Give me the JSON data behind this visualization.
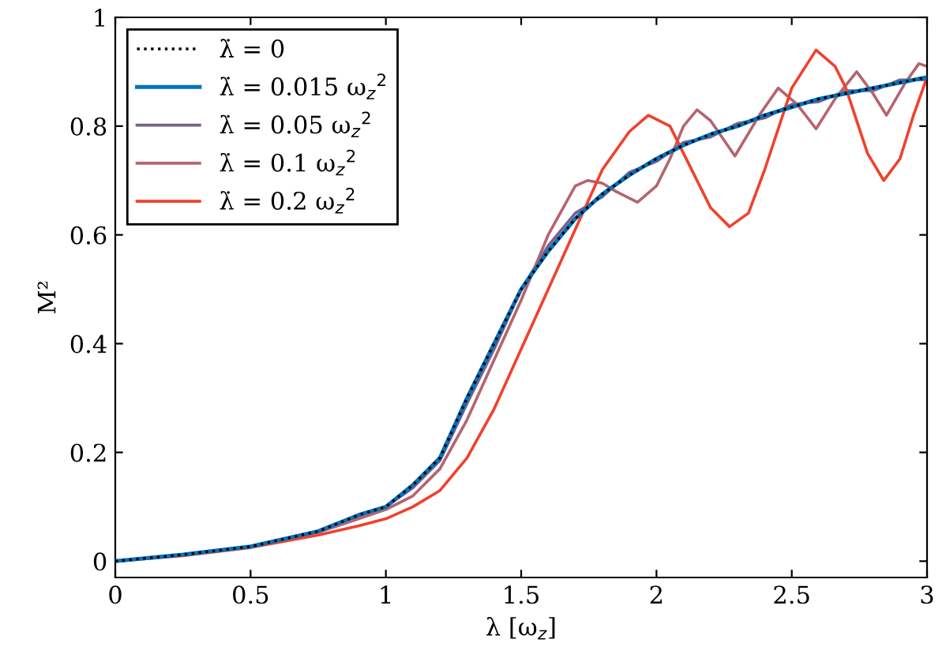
{
  "chart_data": {
    "type": "line",
    "xlabel": "λ [ω$_{z}$]",
    "ylabel": "M²",
    "xlim": [
      0,
      3
    ],
    "ylim": [
      -0.03,
      1
    ],
    "xticks": [
      0,
      0.5,
      1,
      1.5,
      2,
      2.5,
      3
    ],
    "yticks": [
      0,
      0.2,
      0.4,
      0.6,
      0.8,
      1
    ],
    "grid": false,
    "legend": "top left",
    "marker": "none",
    "series": [
      {
        "name": "λ̇ = 0",
        "color": "#000000",
        "line_style": "dotted",
        "x": [
          0,
          0.25,
          0.5,
          0.75,
          0.9,
          1.0,
          1.1,
          1.2,
          1.3,
          1.4,
          1.5,
          1.6,
          1.7,
          1.8,
          1.9,
          2.0,
          2.1,
          2.2,
          2.3,
          2.4,
          2.5,
          2.6,
          2.7,
          2.8,
          2.9,
          3.0
        ],
        "values": [
          0,
          0.012,
          0.027,
          0.055,
          0.085,
          0.1,
          0.14,
          0.19,
          0.3,
          0.4,
          0.5,
          0.57,
          0.63,
          0.675,
          0.71,
          0.74,
          0.765,
          0.785,
          0.8,
          0.82,
          0.835,
          0.85,
          0.86,
          0.87,
          0.88,
          0.89
        ]
      },
      {
        "name": "λ̇ = 0.015 ω$_{z}$$^{2}$",
        "color": "#0072bd",
        "line_style": "solid",
        "x": [
          0,
          0.25,
          0.5,
          0.75,
          0.9,
          1.0,
          1.1,
          1.2,
          1.3,
          1.4,
          1.5,
          1.6,
          1.7,
          1.8,
          1.9,
          2.0,
          2.1,
          2.2,
          2.3,
          2.4,
          2.5,
          2.6,
          2.7,
          2.8,
          2.9,
          3.0
        ],
        "values": [
          0,
          0.012,
          0.027,
          0.055,
          0.085,
          0.1,
          0.14,
          0.19,
          0.3,
          0.4,
          0.5,
          0.57,
          0.63,
          0.675,
          0.71,
          0.74,
          0.765,
          0.785,
          0.8,
          0.82,
          0.835,
          0.85,
          0.86,
          0.87,
          0.88,
          0.89
        ]
      },
      {
        "name": "λ̇ = 0.05 ω$_{z}$$^{2}$",
        "color": "#77628a",
        "line_style": "solid",
        "x": [
          0,
          0.25,
          0.5,
          0.75,
          0.9,
          1.0,
          1.1,
          1.2,
          1.3,
          1.4,
          1.5,
          1.6,
          1.7,
          1.8,
          1.9,
          2.0,
          2.1,
          2.2,
          2.3,
          2.4,
          2.5,
          2.6,
          2.7,
          2.8,
          2.9,
          3.0
        ],
        "values": [
          0,
          0.012,
          0.027,
          0.055,
          0.083,
          0.1,
          0.135,
          0.185,
          0.29,
          0.39,
          0.5,
          0.58,
          0.64,
          0.67,
          0.715,
          0.735,
          0.77,
          0.78,
          0.805,
          0.815,
          0.84,
          0.845,
          0.865,
          0.865,
          0.885,
          0.885
        ]
      },
      {
        "name": "λ̇ = 0.1 ω$_{z}$$^{2}$",
        "color": "#b5646e",
        "line_style": "solid",
        "x": [
          0,
          0.25,
          0.5,
          0.75,
          0.9,
          1.0,
          1.1,
          1.2,
          1.3,
          1.4,
          1.5,
          1.6,
          1.7,
          1.745,
          1.8,
          1.85,
          1.93,
          2.0,
          2.05,
          2.1,
          2.15,
          2.2,
          2.29,
          2.38,
          2.45,
          2.52,
          2.59,
          2.66,
          2.74,
          2.8,
          2.85,
          2.92,
          2.97,
          3.0
        ],
        "values": [
          0,
          0.012,
          0.027,
          0.053,
          0.078,
          0.095,
          0.12,
          0.17,
          0.26,
          0.37,
          0.48,
          0.6,
          0.69,
          0.7,
          0.695,
          0.68,
          0.66,
          0.69,
          0.74,
          0.8,
          0.83,
          0.81,
          0.745,
          0.82,
          0.87,
          0.84,
          0.795,
          0.85,
          0.9,
          0.86,
          0.82,
          0.88,
          0.915,
          0.91
        ]
      },
      {
        "name": "λ̇ = 0.2 ω$_{z}$$^{2}$",
        "color": "#f0412d",
        "line_style": "solid",
        "x": [
          0,
          0.25,
          0.5,
          0.75,
          0.9,
          1.0,
          1.1,
          1.2,
          1.3,
          1.4,
          1.5,
          1.6,
          1.7,
          1.8,
          1.9,
          1.97,
          2.05,
          2.1,
          2.2,
          2.27,
          2.34,
          2.4,
          2.5,
          2.59,
          2.66,
          2.7,
          2.78,
          2.84,
          2.9,
          2.95,
          3.0
        ],
        "values": [
          0,
          0.01,
          0.025,
          0.048,
          0.065,
          0.078,
          0.1,
          0.13,
          0.19,
          0.28,
          0.39,
          0.5,
          0.61,
          0.72,
          0.79,
          0.82,
          0.8,
          0.75,
          0.65,
          0.615,
          0.64,
          0.72,
          0.87,
          0.94,
          0.91,
          0.87,
          0.75,
          0.7,
          0.74,
          0.82,
          0.89
        ]
      }
    ]
  }
}
